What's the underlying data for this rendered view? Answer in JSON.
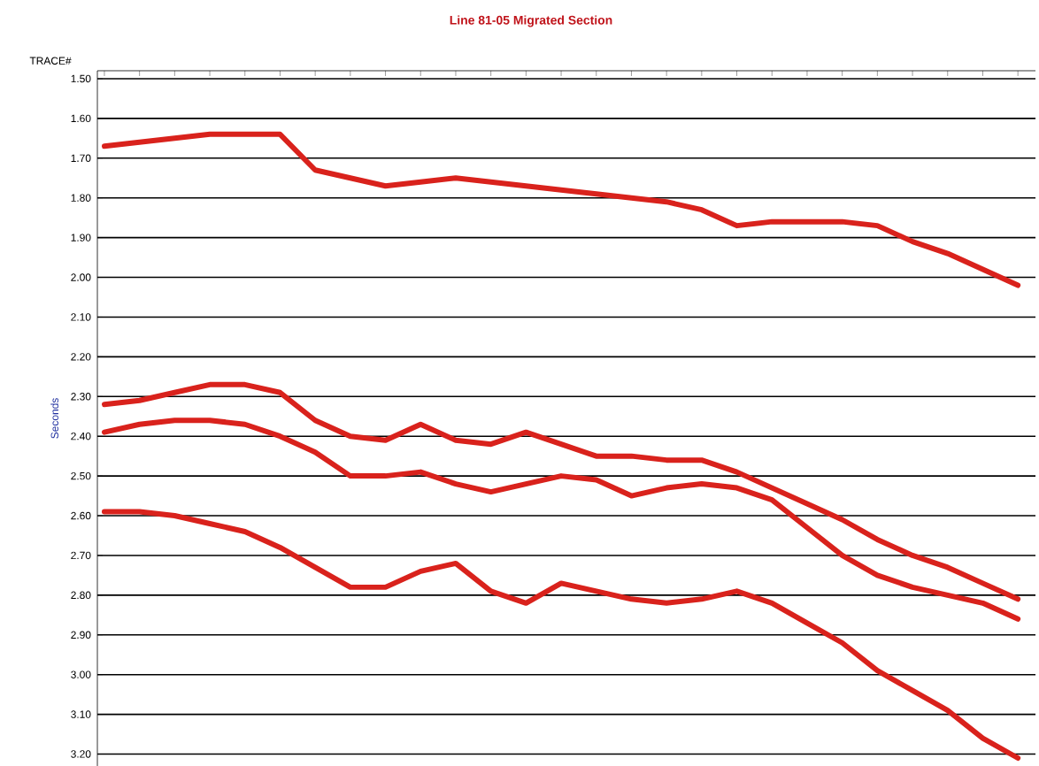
{
  "chart_data": {
    "type": "line",
    "title": "Line 81-05 Migrated Section",
    "xlabel": "TRACE#",
    "ylabel": "Seconds",
    "categories": [
      null,
      null,
      null,
      null,
      null,
      null,
      null,
      null,
      null,
      null,
      null,
      null,
      null,
      null,
      null,
      null,
      null,
      null,
      null,
      null,
      null,
      null,
      null,
      null,
      null,
      null,
      null
    ],
    "series": [
      {
        "color": "#d9221c",
        "values": [
          1.67,
          1.66,
          1.65,
          1.64,
          1.64,
          1.64,
          1.73,
          1.75,
          1.77,
          1.76,
          1.75,
          1.76,
          1.77,
          1.78,
          1.79,
          1.8,
          1.81,
          1.83,
          1.87,
          1.86,
          1.86,
          1.86,
          1.87,
          1.91,
          1.94,
          1.98,
          2.02
        ]
      },
      {
        "color": "#d9221c",
        "values": [
          2.32,
          2.31,
          2.29,
          2.27,
          2.27,
          2.29,
          2.36,
          2.4,
          2.41,
          2.37,
          2.41,
          2.42,
          2.39,
          2.42,
          2.45,
          2.45,
          2.46,
          2.46,
          2.49,
          2.53,
          2.57,
          2.61,
          2.66,
          2.7,
          2.73,
          2.77,
          2.81
        ]
      },
      {
        "color": "#d9221c",
        "values": [
          2.39,
          2.37,
          2.36,
          2.36,
          2.37,
          2.4,
          2.44,
          2.5,
          2.5,
          2.49,
          2.52,
          2.54,
          2.52,
          2.5,
          2.51,
          2.55,
          2.53,
          2.52,
          2.53,
          2.56,
          2.63,
          2.7,
          2.75,
          2.78,
          2.8,
          2.82,
          2.86
        ]
      },
      {
        "color": "#d9221c",
        "values": [
          2.59,
          2.59,
          2.6,
          2.62,
          2.64,
          2.68,
          2.73,
          2.78,
          2.78,
          2.74,
          2.72,
          2.79,
          2.82,
          2.77,
          2.79,
          2.81,
          2.82,
          2.81,
          2.79,
          2.82,
          2.87,
          2.92,
          2.99,
          3.04,
          3.09,
          3.16,
          3.21
        ]
      }
    ],
    "ylim": [
      3.23,
      1.48
    ],
    "yticks": [
      {
        "value": 1.5,
        "label": "1.50"
      },
      {
        "value": 1.6,
        "label": "1.60"
      },
      {
        "value": 1.7,
        "label": "1.70"
      },
      {
        "value": 1.8,
        "label": "1.80"
      },
      {
        "value": 1.9,
        "label": "1.90"
      },
      {
        "value": 2.0,
        "label": "2.00"
      },
      {
        "value": 2.1,
        "label": "2.10"
      },
      {
        "value": 2.2,
        "label": "2.20"
      },
      {
        "value": 2.3,
        "label": "2.30"
      },
      {
        "value": 2.4,
        "label": "2.40"
      },
      {
        "value": 2.5,
        "label": "2.50"
      },
      {
        "value": 2.6,
        "label": "2.60"
      },
      {
        "value": 2.7,
        "label": "2.70"
      },
      {
        "value": 2.8,
        "label": "2.80"
      },
      {
        "value": 2.9,
        "label": "2.90"
      },
      {
        "value": 3.0,
        "label": "3.00"
      },
      {
        "value": 3.1,
        "label": "3.10"
      },
      {
        "value": 3.2,
        "label": "3.20"
      }
    ],
    "grid": "y",
    "tick_labels": "y",
    "marker": "none",
    "line_style": "solid"
  }
}
